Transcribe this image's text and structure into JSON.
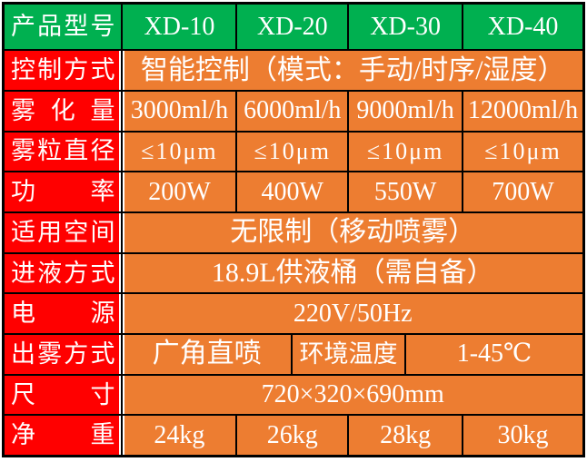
{
  "colors": {
    "header_green": "#00B050",
    "label_red": "#FF0000",
    "value_orange": "#ED7D31",
    "grid_black": "#000000",
    "text_white": "#FFFFFF"
  },
  "table": {
    "header": {
      "label": "产品型号",
      "models": [
        "XD-10",
        "XD-20",
        "XD-30",
        "XD-40"
      ]
    },
    "rows": [
      {
        "label": "控制方式",
        "value": "智能控制（模式：手动/时序/湿度）"
      },
      {
        "label": "雾化量",
        "values": [
          "3000ml/h",
          "6000ml/h",
          "9000ml/h",
          "12000ml/h"
        ]
      },
      {
        "label": "雾粒直径",
        "values": [
          "≤10μm",
          "≤10μm",
          "≤10μm",
          "≤10μm"
        ]
      },
      {
        "label": "功率",
        "values": [
          "200W",
          "400W",
          "550W",
          "700W"
        ]
      },
      {
        "label": "适用空间",
        "value": "无限制（移动喷雾）"
      },
      {
        "label": "进液方式",
        "value": "18.9L供液桶（需自备）"
      },
      {
        "label": "电源",
        "value": "220V/50Hz"
      },
      {
        "label": "出雾方式",
        "values": [
          "广角直喷",
          "环境温度",
          "1-45℃"
        ]
      },
      {
        "label": "尺寸",
        "value": "720×320×690mm"
      },
      {
        "label": "净重",
        "values": [
          "24kg",
          "26kg",
          "28kg",
          "30kg"
        ]
      }
    ]
  }
}
